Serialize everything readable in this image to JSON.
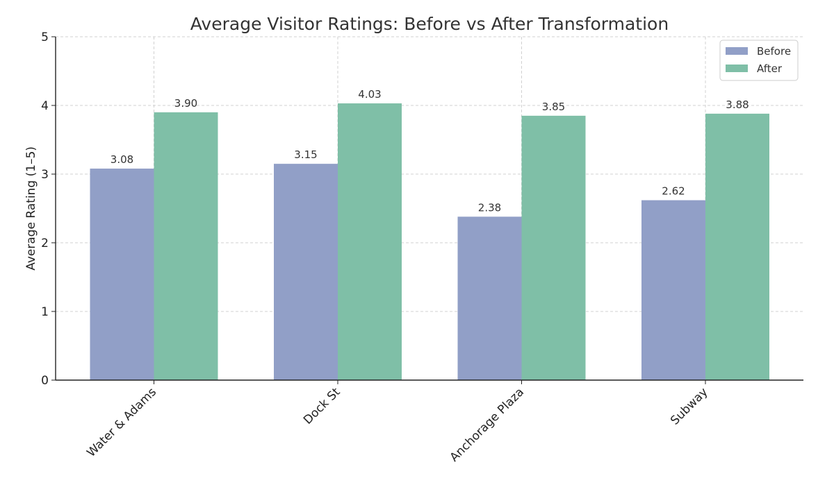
{
  "chart_data": {
    "type": "bar",
    "title": "Average Visitor Ratings: Before vs After Transformation",
    "xlabel": "",
    "ylabel": "Average Rating (1–5)",
    "categories": [
      "Water & Adams",
      "Dock St",
      "Anchorage Plaza",
      "Subway"
    ],
    "series": [
      {
        "name": "Before",
        "values": [
          3.08,
          3.15,
          2.38,
          2.62
        ],
        "color": "#919fc7"
      },
      {
        "name": "After",
        "values": [
          3.9,
          4.03,
          3.85,
          3.88
        ],
        "color": "#7fbfa7"
      }
    ],
    "data_labels": [
      [
        "3.08",
        "3.15",
        "2.38",
        "2.62"
      ],
      [
        "3.90",
        "4.03",
        "3.85",
        "3.88"
      ]
    ],
    "ylim": [
      0,
      5
    ],
    "yticks": [
      "0",
      "1",
      "2",
      "3",
      "4",
      "5"
    ],
    "grid": true,
    "legend_position": "top-right"
  }
}
